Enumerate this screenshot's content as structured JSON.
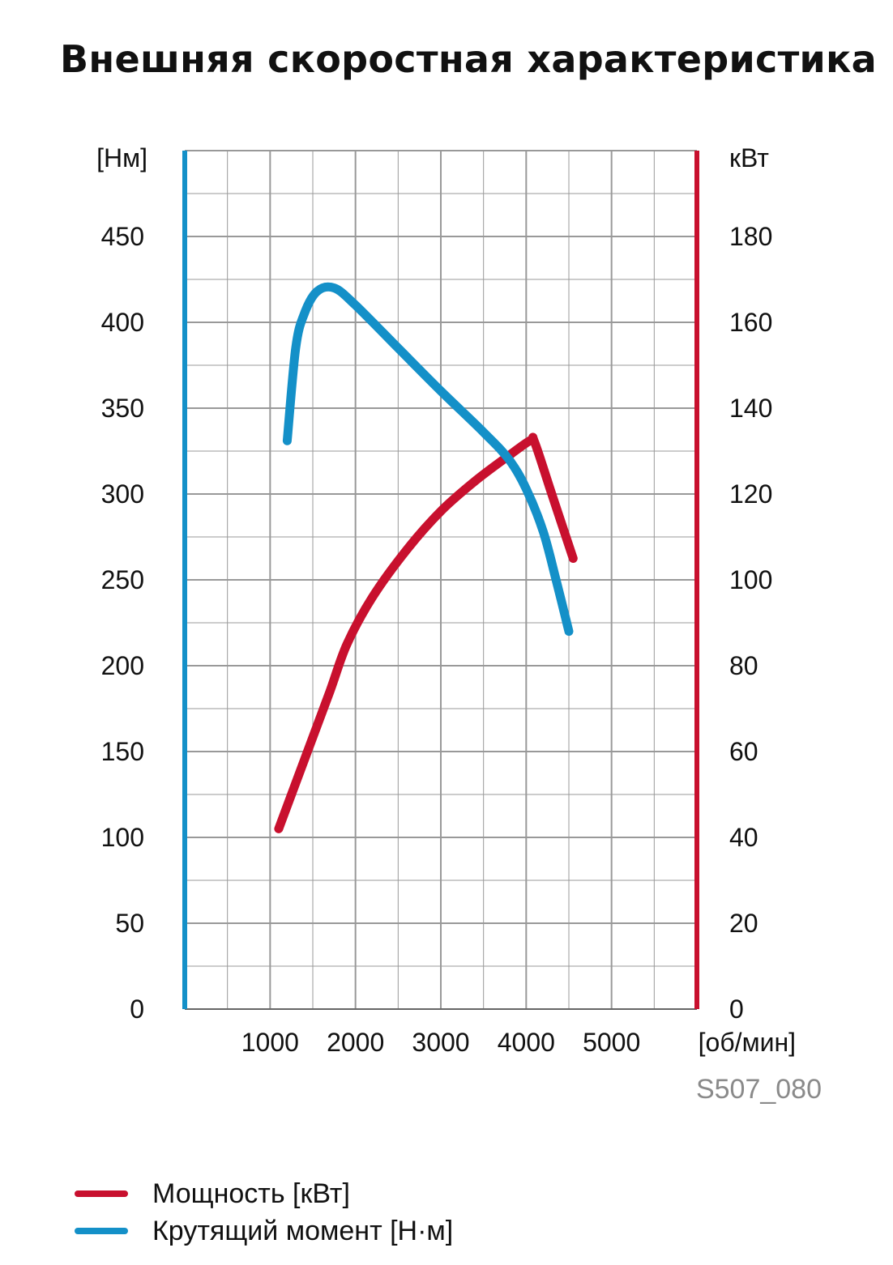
{
  "chart_data": {
    "type": "line",
    "title": "Внешняя скоростная характеристика",
    "xlabel": "[об/мин]",
    "ylabel_left": "[Нм]",
    "ylabel_right": "кВт",
    "x_ticks": [
      "1000",
      "2000",
      "3000",
      "4000",
      "5000"
    ],
    "y_left_ticks": [
      "0",
      "50",
      "100",
      "150",
      "200",
      "250",
      "300",
      "350",
      "400",
      "450"
    ],
    "y_right_ticks": [
      "0",
      "20",
      "40",
      "60",
      "80",
      "100",
      "120",
      "140",
      "160",
      "180"
    ],
    "xlim": [
      0,
      6000
    ],
    "ylim_left": [
      0,
      500
    ],
    "ylim_right": [
      0,
      200
    ],
    "grid": true,
    "legend_position": "bottom-left",
    "image_code": "S507_080",
    "colors": {
      "power": "#c8102e",
      "torque": "#1490c8",
      "grid": "#999999",
      "code": "#8a8a8a"
    },
    "series": [
      {
        "name": "Мощность [кВт]",
        "key": "power",
        "axis": "right",
        "x": [
          1100,
          1400,
          1700,
          1900,
          2200,
          2600,
          3000,
          3400,
          3800,
          4050,
          4100,
          4300,
          4550
        ],
        "values": [
          42,
          58,
          74,
          85,
          96,
          107,
          116,
          123,
          129,
          132.5,
          132,
          120,
          105
        ]
      },
      {
        "name": "Крутящий момент [Н·м]",
        "key": "torque",
        "axis": "left",
        "x": [
          1200,
          1300,
          1400,
          1550,
          1750,
          2000,
          2500,
          3000,
          3500,
          3800,
          4000,
          4200,
          4350,
          4500
        ],
        "values": [
          331,
          385,
          405,
          418,
          420,
          410,
          385,
          360,
          336,
          320,
          303,
          278,
          250,
          220
        ]
      }
    ]
  }
}
